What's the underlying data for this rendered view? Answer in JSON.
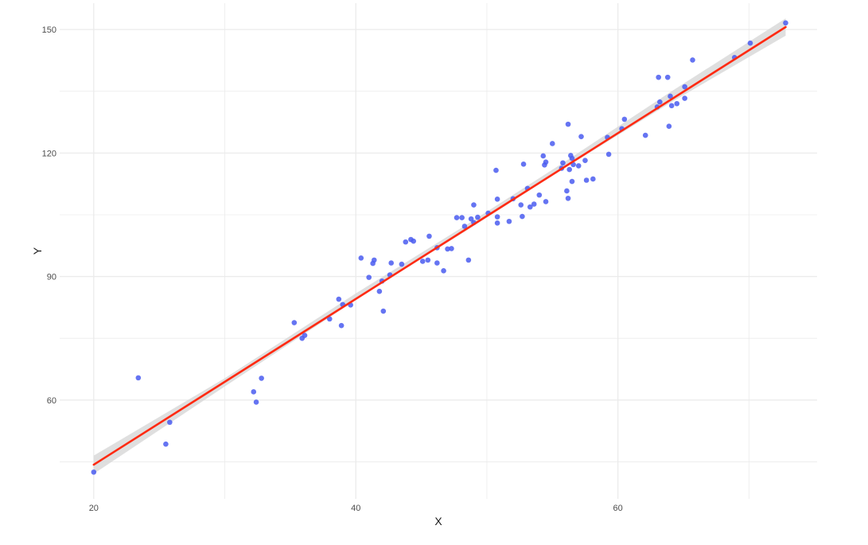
{
  "chart_data": {
    "type": "scatter",
    "title": "",
    "xlabel": "X",
    "ylabel": "Y",
    "xlim": [
      17.4,
      75.2
    ],
    "ylim": [
      36.0,
      156.4
    ],
    "x_ticks": [
      20,
      40,
      60
    ],
    "y_ticks": [
      60,
      90,
      120,
      150
    ],
    "x_minor_gridlines": [
      30,
      50,
      70
    ],
    "y_minor_gridlines": [
      45,
      75,
      105,
      135
    ],
    "grid": true,
    "colors": {
      "points": "#4a5cf0",
      "fit_line": "#ff2a12",
      "confidence_band": "#d9d9d9",
      "grid": "#ebebeb"
    },
    "series": [
      {
        "points": [
          [
            20.0,
            42.5
          ],
          [
            23.4,
            65.4
          ],
          [
            25.5,
            49.3
          ],
          [
            25.8,
            54.6
          ],
          [
            32.2,
            62.0
          ],
          [
            32.4,
            59.5
          ],
          [
            32.8,
            65.3
          ],
          [
            35.3,
            78.8
          ],
          [
            35.9,
            75.0
          ],
          [
            36.1,
            75.7
          ],
          [
            38.0,
            79.7
          ],
          [
            38.7,
            84.5
          ],
          [
            38.9,
            78.1
          ],
          [
            39.0,
            83.2
          ],
          [
            39.6,
            83.1
          ],
          [
            40.4,
            94.5
          ],
          [
            41.0,
            89.8
          ],
          [
            41.3,
            93.2
          ],
          [
            41.4,
            94.0
          ],
          [
            41.8,
            86.4
          ],
          [
            42.0,
            88.9
          ],
          [
            42.1,
            81.6
          ],
          [
            42.6,
            90.4
          ],
          [
            42.7,
            93.3
          ],
          [
            43.5,
            93.0
          ],
          [
            43.8,
            98.4
          ],
          [
            44.2,
            99.0
          ],
          [
            44.4,
            98.6
          ],
          [
            45.1,
            93.7
          ],
          [
            45.5,
            94.0
          ],
          [
            45.6,
            99.8
          ],
          [
            46.2,
            97.0
          ],
          [
            46.2,
            93.3
          ],
          [
            46.7,
            91.4
          ],
          [
            47.0,
            96.7
          ],
          [
            47.3,
            96.8
          ],
          [
            47.7,
            104.3
          ],
          [
            48.1,
            104.3
          ],
          [
            48.3,
            102.2
          ],
          [
            48.6,
            94.0
          ],
          [
            48.8,
            104.0
          ],
          [
            49.0,
            103.1
          ],
          [
            49.0,
            107.4
          ],
          [
            49.3,
            104.4
          ],
          [
            50.1,
            105.4
          ],
          [
            50.7,
            115.8
          ],
          [
            50.8,
            108.8
          ],
          [
            50.8,
            104.5
          ],
          [
            50.8,
            103.0
          ],
          [
            51.7,
            103.4
          ],
          [
            52.0,
            108.9
          ],
          [
            52.6,
            107.4
          ],
          [
            52.7,
            104.6
          ],
          [
            52.8,
            117.3
          ],
          [
            53.1,
            111.4
          ],
          [
            53.3,
            106.9
          ],
          [
            53.6,
            107.6
          ],
          [
            54.0,
            109.8
          ],
          [
            54.3,
            119.3
          ],
          [
            54.4,
            117.1
          ],
          [
            54.5,
            117.8
          ],
          [
            54.5,
            108.2
          ],
          [
            55.0,
            122.3
          ],
          [
            55.7,
            116.3
          ],
          [
            55.8,
            117.6
          ],
          [
            56.1,
            110.8
          ],
          [
            56.2,
            109.0
          ],
          [
            56.2,
            127.0
          ],
          [
            56.3,
            116.0
          ],
          [
            56.4,
            119.4
          ],
          [
            56.5,
            118.7
          ],
          [
            56.5,
            113.1
          ],
          [
            56.6,
            117.2
          ],
          [
            57.0,
            116.9
          ],
          [
            57.2,
            124.0
          ],
          [
            57.5,
            118.2
          ],
          [
            57.6,
            113.4
          ],
          [
            58.1,
            113.7
          ],
          [
            59.2,
            123.8
          ],
          [
            59.3,
            119.7
          ],
          [
            60.3,
            125.9
          ],
          [
            60.5,
            128.2
          ],
          [
            62.1,
            124.3
          ],
          [
            63.0,
            131.2
          ],
          [
            63.1,
            138.4
          ],
          [
            63.2,
            132.4
          ],
          [
            63.8,
            138.4
          ],
          [
            63.9,
            126.5
          ],
          [
            64.0,
            133.8
          ],
          [
            64.1,
            131.5
          ],
          [
            64.5,
            132.0
          ],
          [
            65.1,
            133.3
          ],
          [
            65.1,
            136.1
          ],
          [
            65.7,
            142.6
          ],
          [
            68.9,
            143.2
          ],
          [
            70.1,
            146.7
          ],
          [
            72.8,
            151.6
          ]
        ]
      }
    ],
    "fit_line": {
      "x": [
        20.0,
        72.8
      ],
      "y": [
        44.3,
        150.6
      ]
    },
    "confidence_band": {
      "x": [
        20.0,
        30.0,
        40.0,
        48.5,
        56.0,
        64.0,
        72.8
      ],
      "lower": [
        42.1,
        63.3,
        84.3,
        101.3,
        116.5,
        132.2,
        148.5
      ],
      "upper": [
        46.5,
        65.3,
        85.9,
        102.7,
        118.0,
        134.8,
        152.7
      ]
    }
  }
}
